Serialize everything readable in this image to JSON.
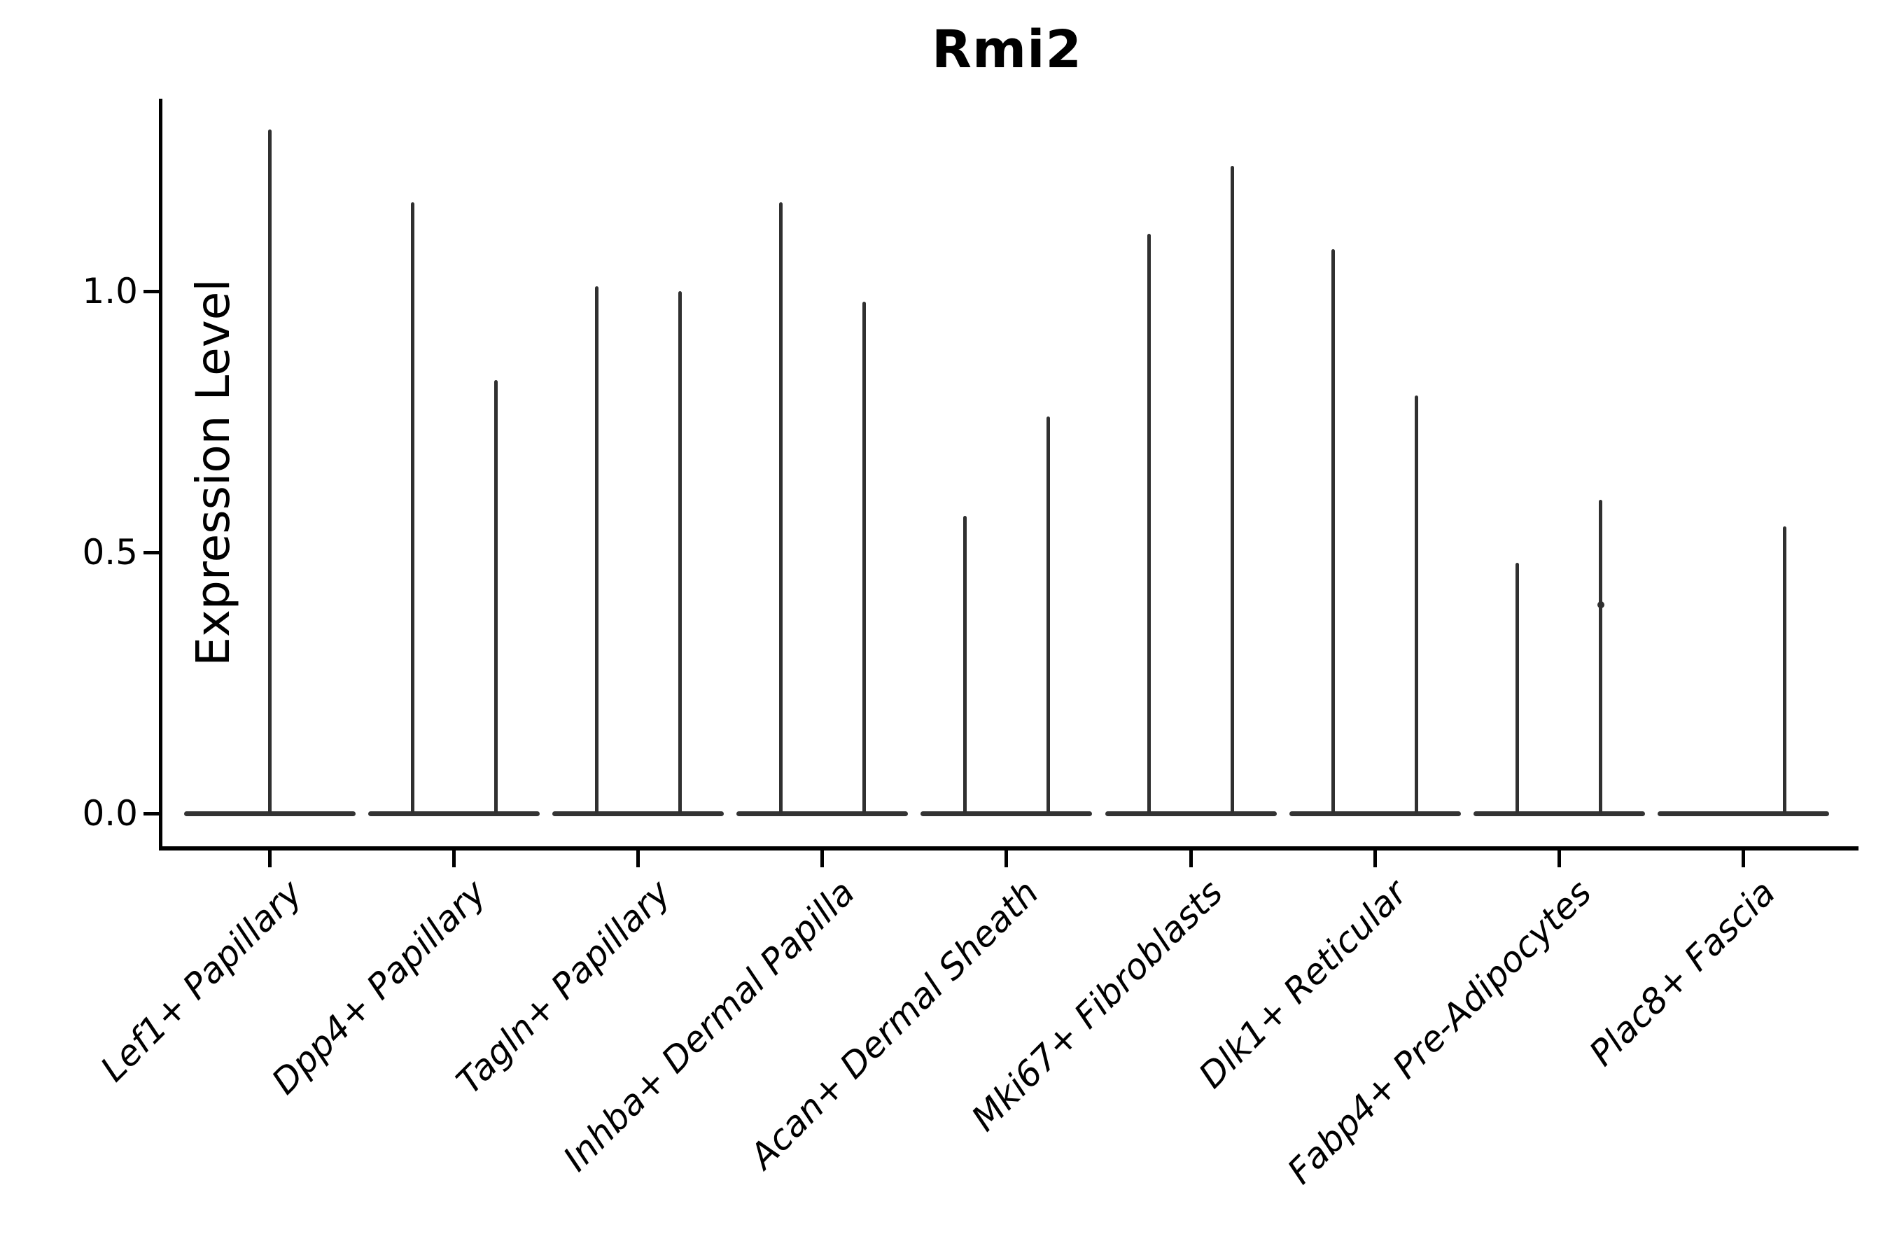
{
  "title": "Rmi2",
  "ylabel": "Expression Level",
  "chart_data": {
    "type": "violin",
    "title": "Rmi2",
    "xlabel": "",
    "ylabel": "Expression Level",
    "ylim": [
      -0.063,
      1.369
    ],
    "yticks": [
      0.0,
      0.5,
      1.0
    ],
    "ytick_labels": [
      "0.0",
      "0.5",
      "1.0"
    ],
    "grid": false,
    "legend": "none",
    "description": "Single-cell expression violin plot; each cell type shows flat zero-density violins with thin spikes reaching the maximum expression value. Two violins per category (left/right); Lef1+ Papillary shows one centered full-width violin; Plac8+ Fascia left violin has no spike.",
    "categories": [
      "Lef1+ Papillary",
      "Dpp4+ Papillary",
      "Tagln+ Papillary",
      "Inhba+ Dermal Papilla",
      "Acan+ Dermal Sheath",
      "Mki67+ Fibroblasts",
      "Dlk1+ Reticular",
      "Fabp4+ Pre-Adipocytes",
      "Plac8+ Fascia"
    ],
    "series": [
      {
        "name": "left-violin",
        "values": [
          null,
          1.17,
          1.01,
          1.17,
          0.57,
          1.11,
          1.08,
          0.48,
          null
        ]
      },
      {
        "name": "right-violin",
        "values": [
          null,
          0.83,
          1.0,
          0.98,
          0.76,
          1.24,
          0.8,
          0.6,
          0.55
        ]
      },
      {
        "name": "center-violin",
        "values": [
          1.31,
          null,
          null,
          null,
          null,
          null,
          null,
          null,
          null
        ]
      }
    ],
    "spike_dots": [
      {
        "category_index": 7,
        "series": "right-violin",
        "values": [
          0.4
        ]
      }
    ],
    "colors": {
      "violin": "#303030",
      "baseline_violin": "#333333",
      "axis": "#000000",
      "text": "#000000",
      "background": "#ffffff"
    }
  }
}
